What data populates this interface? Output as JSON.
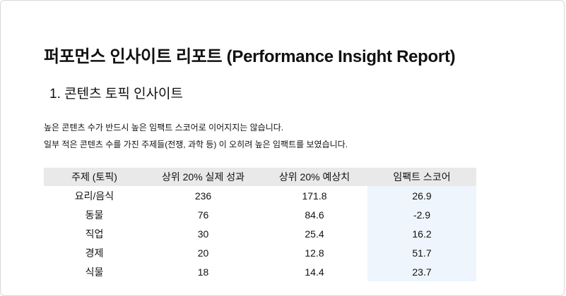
{
  "header": {
    "title": "퍼포먼스 인사이트 리포트 (Performance Insight Report)"
  },
  "section": {
    "title": "1. 콘텐츠 토픽 인사이트",
    "paragraphs": [
      "높은 콘텐츠 수가 반드시 높은 임팩트 스코어로 이어지지는 않습니다.",
      "일부 적은 콘텐츠 수를 가진 주제들(전쟁, 과학 등) 이 오히려 높은 임팩트를 보였습니다."
    ]
  },
  "table": {
    "columns": [
      "주제 (토픽)",
      "상위 20% 실제 성과",
      "상위 20% 예상치",
      "임팩트 스코어"
    ],
    "rows": [
      [
        "요리/음식",
        "236",
        "171.8",
        "26.9"
      ],
      [
        "동물",
        "76",
        "84.6",
        "-2.9"
      ],
      [
        "직업",
        "30",
        "25.4",
        "16.2"
      ],
      [
        "경제",
        "20",
        "12.8",
        "51.7"
      ],
      [
        "식물",
        "18",
        "14.4",
        "23.7"
      ]
    ]
  }
}
